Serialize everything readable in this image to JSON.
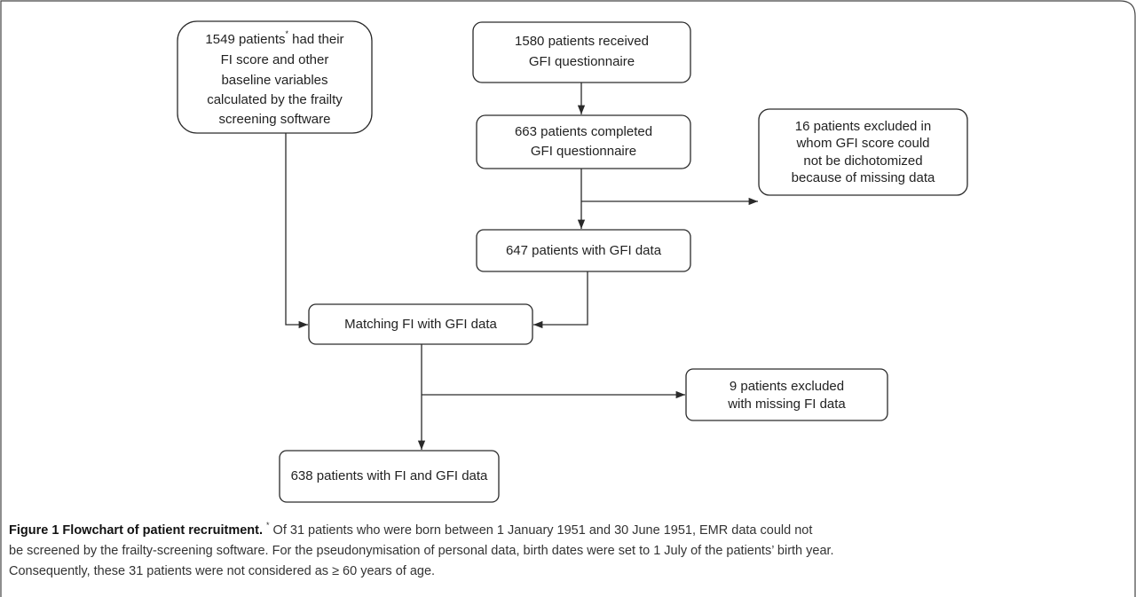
{
  "nodes": [
    {
      "line1": {
        "before": "1549 patients",
        "sup": "*",
        "after": " had their"
      },
      "lines": [
        "FI score and other",
        "baseline variables",
        "calculated by the frailty",
        "screening software"
      ]
    },
    {
      "lines": [
        "1580 patients received",
        "GFI questionnaire"
      ]
    },
    {
      "lines": [
        "663 patients completed",
        "GFI questionnaire"
      ]
    },
    {
      "lines": [
        "16 patients excluded in",
        "whom GFI score could",
        "not be dichotomized",
        "because of missing data"
      ]
    },
    {
      "lines": [
        "647 patients with GFI data"
      ]
    },
    {
      "lines": [
        "Matching FI with GFI data"
      ]
    },
    {
      "lines": [
        "9 patients excluded",
        "with missing FI data"
      ]
    },
    {
      "lines": [
        "638 patients with FI and GFI data"
      ]
    }
  ],
  "caption": {
    "title": "Figure 1 Flowchart of patient recruitment.",
    "sup": "*",
    "lines": [
      " Of 31 patients who were born between 1 January 1951 and 30 June 1951, EMR data could not",
      "be screened by the frailty-screening software. For the pseudonymisation of personal data, birth dates were set to 1 July of the patients’ birth year.",
      "Consequently, these 31 patients were not considered as ≥ 60 years of age."
    ]
  }
}
